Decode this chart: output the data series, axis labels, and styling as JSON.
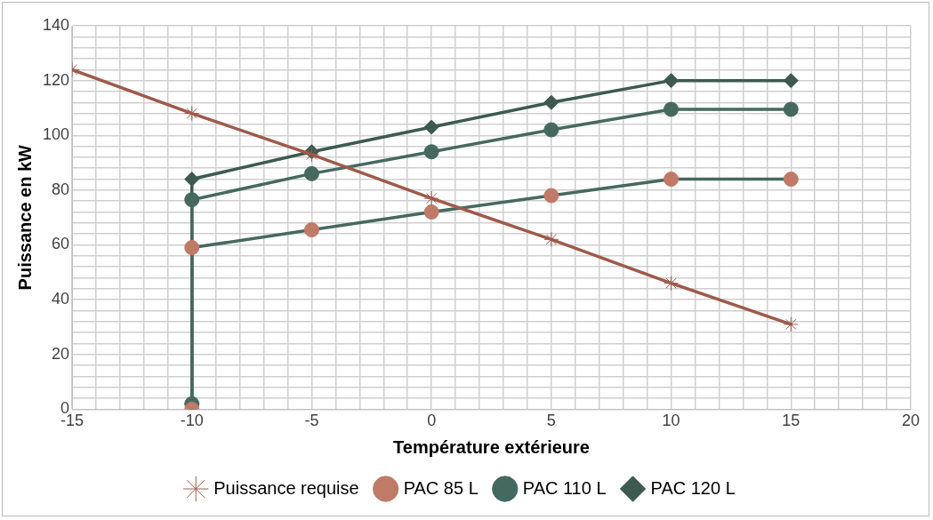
{
  "chart_data": {
    "type": "line",
    "xlabel": "Température extérieure",
    "ylabel": "Puissance en kW",
    "xlim": [
      -15,
      20
    ],
    "xticks": [
      -15,
      {
        "value": -14,
        "label": null
      },
      {
        "value": -13,
        "label": null
      },
      {
        "value": -12,
        "label": null
      },
      {
        "value": -11,
        "label": null
      },
      -10,
      {
        "value": -9,
        "label": null
      },
      {
        "value": -8,
        "label": null
      },
      {
        "value": -7,
        "label": null
      },
      {
        "value": -6,
        "label": null
      },
      -5,
      {
        "value": -4,
        "label": null
      },
      {
        "value": -3,
        "label": null
      },
      {
        "value": -2,
        "label": null
      },
      {
        "value": -1,
        "label": null
      },
      0,
      {
        "value": 1,
        "label": null
      },
      {
        "value": 2,
        "label": null
      },
      {
        "value": 3,
        "label": null
      },
      {
        "value": 4,
        "label": null
      },
      5,
      {
        "value": 6,
        "label": null
      },
      {
        "value": 7,
        "label": null
      },
      {
        "value": 8,
        "label": null
      },
      {
        "value": 9,
        "label": null
      },
      10,
      {
        "value": 11,
        "label": null
      },
      {
        "value": 12,
        "label": null
      },
      {
        "value": 13,
        "label": null
      },
      {
        "value": 14,
        "label": null
      },
      15,
      {
        "value": 16,
        "label": null
      },
      {
        "value": 17,
        "label": null
      },
      {
        "value": 18,
        "label": null
      },
      {
        "value": 19,
        "label": null
      },
      20
    ],
    "ylim": [
      0,
      140
    ],
    "yticks": [
      0,
      {
        "value": 4,
        "label": null
      },
      {
        "value": 8,
        "label": null
      },
      {
        "value": 12,
        "label": null
      },
      {
        "value": 16,
        "label": null
      },
      20,
      {
        "value": 24,
        "label": null
      },
      {
        "value": 28,
        "label": null
      },
      {
        "value": 32,
        "label": null
      },
      {
        "value": 36,
        "label": null
      },
      40,
      {
        "value": 44,
        "label": null
      },
      {
        "value": 48,
        "label": null
      },
      {
        "value": 52,
        "label": null
      },
      {
        "value": 56,
        "label": null
      },
      60,
      {
        "value": 64,
        "label": null
      },
      {
        "value": 68,
        "label": null
      },
      {
        "value": 72,
        "label": null
      },
      {
        "value": 76,
        "label": null
      },
      80,
      {
        "value": 84,
        "label": null
      },
      {
        "value": 88,
        "label": null
      },
      {
        "value": 92,
        "label": null
      },
      {
        "value": 96,
        "label": null
      },
      100,
      {
        "value": 104,
        "label": null
      },
      {
        "value": 108,
        "label": null
      },
      {
        "value": 112,
        "label": null
      },
      {
        "value": 116,
        "label": null
      },
      120,
      {
        "value": 124,
        "label": null
      },
      {
        "value": 128,
        "label": null
      },
      {
        "value": 132,
        "label": null
      },
      {
        "value": 136,
        "label": null
      },
      140
    ],
    "grid": true,
    "legend": "bottom",
    "line_style": "solid",
    "series": [
      {
        "name": "Puissance requise",
        "color": "#9e5a4a",
        "marker": "cross",
        "x": [
          -15,
          -10,
          -5,
          0,
          5,
          10,
          15
        ],
        "values": [
          124,
          108,
          93,
          77,
          62,
          46,
          31
        ]
      },
      {
        "name": "PAC 85 L",
        "color": "#46695f",
        "colors": [
          "#c07a68",
          "#c07a68",
          "#c07a68",
          "#c07a68",
          "#c07a68",
          "#c07a68",
          "#c07a68"
        ],
        "marker": "circle",
        "x": [
          -10,
          -10,
          -5,
          0,
          5,
          10,
          15
        ],
        "values": [
          0,
          59,
          65.5,
          72,
          78,
          84,
          84
        ]
      },
      {
        "name": "PAC 110 L",
        "color": "#46695f",
        "marker": "circle",
        "x": [
          -10,
          -10,
          -5,
          0,
          5,
          10,
          15
        ],
        "values": [
          2,
          76.5,
          86,
          94,
          102,
          109.5,
          109.5
        ]
      },
      {
        "name": "PAC 120 L",
        "color": "#3c5a50",
        "marker": "diamond",
        "x": [
          -10,
          -10,
          -5,
          0,
          5,
          10,
          15
        ],
        "values": [
          2,
          84,
          94,
          103,
          112,
          120,
          120
        ]
      }
    ]
  }
}
